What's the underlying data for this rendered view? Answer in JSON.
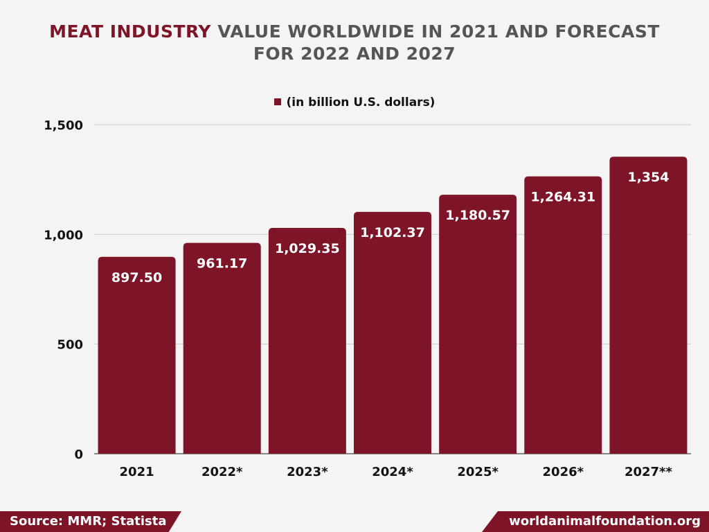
{
  "header": {
    "title_accent": "MEAT INDUSTRY",
    "title_rest": "VALUE WORLDWIDE IN 2021  AND FORECAST",
    "title_line2": "FOR 2022 AND 2027"
  },
  "legend": {
    "label": "(in billion U.S. dollars)"
  },
  "footer": {
    "source": "Source: MMR; Statista",
    "site": "worldanimalfoundation.org"
  },
  "colors": {
    "bar": "#7d1428",
    "accent": "#7d1428",
    "title_gray": "#555555",
    "grid": "#cccccc"
  },
  "chart_data": {
    "type": "bar",
    "title": "MEAT INDUSTRY VALUE WORLDWIDE IN 2021  AND FORECAST FOR 2022 AND 2027",
    "categories": [
      "2021",
      "2022*",
      "2023*",
      "2024*",
      "2025*",
      "2026*",
      "2027**"
    ],
    "series": [
      {
        "name": "(in billion U.S. dollars)",
        "values": [
          897.5,
          961.17,
          1029.35,
          1102.37,
          1180.57,
          1264.31,
          1354
        ],
        "labels": [
          "897.50",
          "961.17",
          "1,029.35",
          "1,102.37",
          "1,180.57",
          "1,264.31",
          "1,354"
        ]
      }
    ],
    "ylim": [
      0,
      1500
    ],
    "yticks": [
      0,
      500,
      1000,
      1500
    ],
    "ytick_labels": [
      "0",
      "500",
      "1,000",
      "1,500"
    ],
    "grid": true,
    "legend_position": "top-center"
  }
}
